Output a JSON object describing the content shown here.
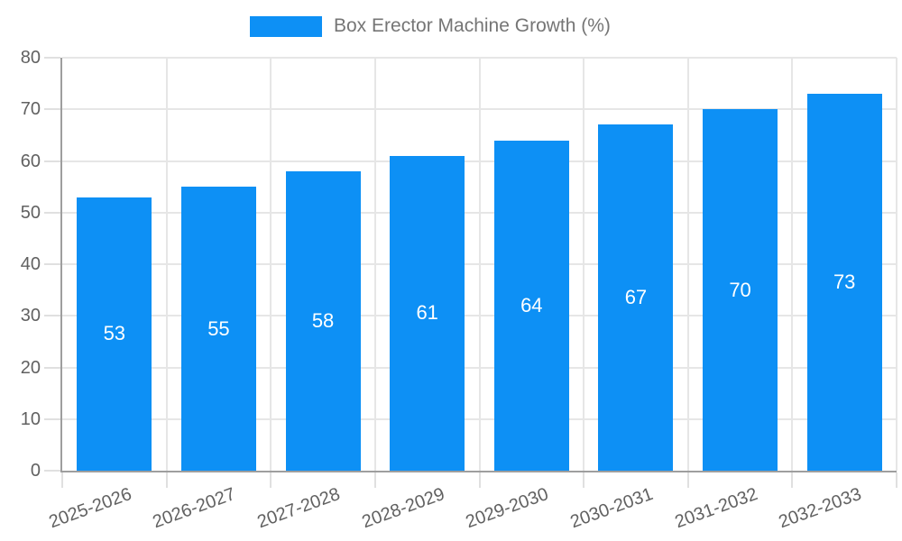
{
  "chart_data": {
    "type": "bar",
    "title": "Box Erector Machine Growth (%)",
    "categories": [
      "2025-2026",
      "2026-2027",
      "2027-2028",
      "2028-2029",
      "2029-2030",
      "2030-2031",
      "2031-2032",
      "2032-2033"
    ],
    "values": [
      53,
      55,
      58,
      61,
      64,
      67,
      70,
      73
    ],
    "xlabel": "",
    "ylabel": "",
    "ylim": [
      0,
      80
    ],
    "yticks": [
      0,
      10,
      20,
      30,
      40,
      50,
      60,
      70,
      80
    ],
    "grid": true,
    "legend_position": "top",
    "bar_labels_shown": true,
    "colors": {
      "bar": "#0d90f5",
      "bar_label": "#ffffff",
      "grid": "#e6e6e6",
      "axis": "#9e9e9e",
      "tick_label": "#616161",
      "legend_text": "#757575",
      "background": "#ffffff"
    }
  }
}
